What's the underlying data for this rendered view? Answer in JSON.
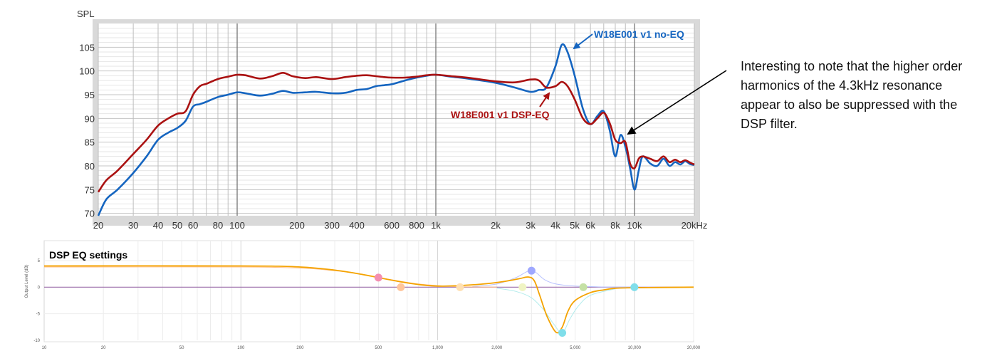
{
  "annotation": "Interesting to note that the higher order harmonics of the 4.3kHz resonance appear to also be suppressed with the DSP filter.",
  "colors": {
    "noeq": "#1565c0",
    "dspeq": "#aa1111",
    "eq_main": "#f4a300"
  },
  "chart_data": [
    {
      "type": "line",
      "ylabel": "SPL",
      "x_scale": "log",
      "xlim": [
        20,
        20000
      ],
      "ylim": [
        69.5,
        110
      ],
      "x_tick_labels": [
        {
          "v": 20,
          "t": "20"
        },
        {
          "v": 30,
          "t": "30"
        },
        {
          "v": 40,
          "t": "40"
        },
        {
          "v": 50,
          "t": "50"
        },
        {
          "v": 60,
          "t": "60"
        },
        {
          "v": 80,
          "t": "80"
        },
        {
          "v": 100,
          "t": "100"
        },
        {
          "v": 200,
          "t": "200"
        },
        {
          "v": 300,
          "t": "300"
        },
        {
          "v": 400,
          "t": "400"
        },
        {
          "v": 600,
          "t": "600"
        },
        {
          "v": 800,
          "t": "800"
        },
        {
          "v": 1000,
          "t": "1k"
        },
        {
          "v": 2000,
          "t": "2k"
        },
        {
          "v": 3000,
          "t": "3k"
        },
        {
          "v": 4000,
          "t": "4k"
        },
        {
          "v": 5000,
          "t": "5k"
        },
        {
          "v": 6000,
          "t": "6k"
        },
        {
          "v": 8000,
          "t": "8k"
        },
        {
          "v": 10000,
          "t": "10k"
        },
        {
          "v": 20000,
          "t": "20kHz"
        }
      ],
      "y_ticks": [
        70,
        75,
        80,
        85,
        90,
        95,
        100,
        105
      ],
      "grid": true,
      "series": [
        {
          "name": "W18E001 v1 no-EQ",
          "x": [
            20,
            22,
            25,
            30,
            35,
            40,
            45,
            50,
            55,
            60,
            65,
            70,
            80,
            90,
            100,
            110,
            130,
            150,
            170,
            190,
            220,
            250,
            300,
            350,
            400,
            450,
            500,
            550,
            600,
            700,
            800,
            900,
            1000,
            1200,
            1500,
            2000,
            2500,
            3000,
            3300,
            3600,
            4000,
            4300,
            4600,
            5000,
            5500,
            6000,
            6500,
            7000,
            7500,
            8000,
            8500,
            9000,
            9500,
            10000,
            10500,
            11000,
            12000,
            13000,
            14000,
            15000,
            16000,
            17000,
            18000,
            19000,
            20000
          ],
          "y": [
            69.5,
            73,
            75,
            78.5,
            82,
            85.5,
            87,
            88,
            89.5,
            92.5,
            93,
            93.5,
            94.5,
            95,
            95.5,
            95.3,
            94.8,
            95.2,
            95.8,
            95.4,
            95.5,
            95.6,
            95.3,
            95.4,
            96,
            96.2,
            96.8,
            97,
            97.2,
            98,
            98.6,
            99,
            99.2,
            98.8,
            98.3,
            97.5,
            96.5,
            95.6,
            96,
            96.5,
            101,
            105.5,
            104,
            99,
            92,
            88.8,
            90.5,
            91.5,
            87.5,
            82,
            86.5,
            84,
            79.5,
            75,
            79,
            82,
            80.5,
            80,
            81.5,
            80,
            80.8,
            80.3,
            81,
            80.4,
            80.2
          ]
        },
        {
          "name": "W18E001 v1 DSP-EQ",
          "x": [
            20,
            22,
            25,
            30,
            35,
            40,
            45,
            50,
            55,
            60,
            65,
            70,
            80,
            90,
            100,
            110,
            130,
            150,
            170,
            190,
            220,
            250,
            300,
            350,
            400,
            450,
            500,
            550,
            600,
            700,
            800,
            900,
            1000,
            1200,
            1500,
            2000,
            2500,
            3000,
            3300,
            3600,
            4000,
            4300,
            4600,
            5000,
            5500,
            6000,
            6500,
            7000,
            7500,
            8000,
            8500,
            9000,
            9500,
            10000,
            10500,
            11000,
            12000,
            13000,
            14000,
            15000,
            16000,
            17000,
            18000,
            19000,
            20000
          ],
          "y": [
            74.5,
            77,
            79,
            82.5,
            85.5,
            88.5,
            90,
            91,
            91.5,
            95,
            96.8,
            97.3,
            98.3,
            98.8,
            99.2,
            99.1,
            98.4,
            98.9,
            99.6,
            98.9,
            98.5,
            98.7,
            98.3,
            98.7,
            99,
            99.1,
            98.9,
            98.7,
            98.6,
            98.6,
            98.8,
            99.1,
            99.2,
            98.9,
            98.5,
            97.8,
            97.6,
            98.2,
            98,
            96.5,
            96.8,
            97.7,
            96.8,
            94,
            90,
            88.8,
            90,
            91.2,
            89,
            85.5,
            84.8,
            85,
            80.5,
            79.5,
            81.5,
            82,
            81.5,
            81,
            82,
            80.8,
            81.3,
            80.8,
            81.2,
            80.7,
            80.3
          ]
        }
      ],
      "annotations": [
        "W18E001 v1 no-EQ",
        "W18E001 v1 DSP-EQ"
      ]
    },
    {
      "type": "line",
      "title": "DSP EQ settings",
      "ylabel": "Output Level (dB)",
      "x_scale": "log",
      "xlim": [
        10,
        20000
      ],
      "ylim": [
        -10,
        5
      ],
      "y_tick_labels": [
        "5",
        "0",
        "-5",
        "-10"
      ],
      "x_tick_labels": [
        {
          "v": 10,
          "t": "10"
        },
        {
          "v": 20,
          "t": "20"
        },
        {
          "v": 50,
          "t": "50"
        },
        {
          "v": 100,
          "t": "100"
        },
        {
          "v": 200,
          "t": "200"
        },
        {
          "v": 500,
          "t": "500"
        },
        {
          "v": 1000,
          "t": "1,000"
        },
        {
          "v": 2000,
          "t": "2,000"
        },
        {
          "v": 5000,
          "t": "5,000"
        },
        {
          "v": 10000,
          "t": "10,000"
        },
        {
          "v": 20000,
          "t": "20,000"
        }
      ],
      "series": [
        {
          "x": [
            10,
            100,
            200,
            300,
            400,
            500,
            650,
            800,
            1000,
            1300,
            1700,
            2200,
            2600,
            2900,
            3100,
            3300,
            3600,
            4000,
            4300,
            4600,
            5000,
            6000,
            7000,
            8000,
            10000,
            20000
          ],
          "y": [
            4,
            4,
            3.8,
            3.2,
            2.5,
            1.8,
            1,
            0.5,
            0.2,
            0.3,
            0.6,
            1.1,
            1.6,
            1.9,
            1.2,
            -1.5,
            -5.5,
            -8.5,
            -7.5,
            -4.5,
            -2.5,
            -1,
            -0.5,
            -0.2,
            -0.1,
            0
          ],
          "color": "#f4a300"
        },
        {
          "x": [
            10,
            100,
            200,
            300,
            400,
            500,
            650,
            800,
            1000,
            1300,
            1600,
            2000
          ],
          "y": [
            3.8,
            3.8,
            3.6,
            3.1,
            2.5,
            1.8,
            1.1,
            0.6,
            0.3,
            0.1,
            0.05,
            0
          ],
          "color": "#ffbe84"
        },
        {
          "x": [
            1500,
            2000,
            2500,
            2800,
            3000,
            3200,
            3500,
            4000,
            5000,
            7000,
            10000
          ],
          "y": [
            0.1,
            0.6,
            1.8,
            2.8,
            3.2,
            2.6,
            1.4,
            0.6,
            0.2,
            0.05,
            0
          ],
          "color": "#b9c2ff"
        },
        {
          "x": [
            2000,
            2500,
            3000,
            3500,
            3900,
            4300,
            4700,
            5200,
            6000,
            8000
          ],
          "y": [
            -0.2,
            -0.8,
            -2,
            -4.5,
            -7,
            -8.6,
            -6,
            -3.5,
            -1.5,
            -0.3
          ],
          "color": "#b2ecec"
        }
      ],
      "nodes": [
        {
          "x": 500,
          "y": 1.8,
          "color": "#f48fb1"
        },
        {
          "x": 650,
          "y": 0,
          "color": "#ffc59a"
        },
        {
          "x": 1300,
          "y": 0,
          "color": "#ffe0b2"
        },
        {
          "x": 2700,
          "y": 0,
          "color": "#f0f4c3"
        },
        {
          "x": 3000,
          "y": 3.1,
          "color": "#9fa8ff"
        },
        {
          "x": 4300,
          "y": -8.6,
          "color": "#80deea"
        },
        {
          "x": 5500,
          "y": 0,
          "color": "#c5e1a5"
        },
        {
          "x": 10000,
          "y": 0,
          "color": "#80deea"
        }
      ],
      "grid": true
    }
  ]
}
